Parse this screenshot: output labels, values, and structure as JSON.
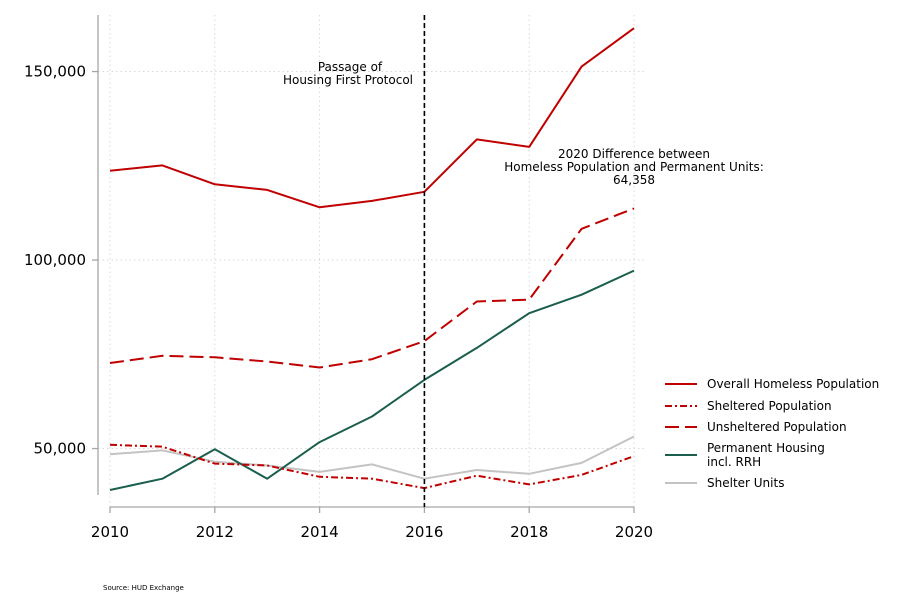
{
  "chart_data": {
    "type": "line",
    "title": "",
    "xlabel": "",
    "ylabel": "",
    "x": [
      2010,
      2011,
      2012,
      2013,
      2014,
      2015,
      2016,
      2017,
      2018,
      2019,
      2020
    ],
    "xlim": [
      2010,
      2020
    ],
    "ylim": [
      35000,
      165000
    ],
    "x_ticks": [
      2010,
      2012,
      2014,
      2016,
      2018,
      2020
    ],
    "x_tick_labels": [
      "2010",
      "2012",
      "2014",
      "2016",
      "2018",
      "2020"
    ],
    "y_ticks": [
      50000,
      100000,
      150000
    ],
    "y_tick_labels": [
      "50,000",
      "100,000",
      "150,000"
    ],
    "grid": true,
    "legend_position": "right",
    "series": [
      {
        "name": "Overall Homeless Population",
        "color": "#c00000",
        "style": "solid",
        "values": [
          123700,
          125100,
          120100,
          118600,
          114000,
          115700,
          118100,
          132000,
          130000,
          151300,
          161500
        ]
      },
      {
        "name": "Sheltered Population",
        "color": "#c00000",
        "style": "dashdot",
        "values": [
          51000,
          50500,
          46000,
          45500,
          42500,
          42000,
          39500,
          42800,
          40500,
          43000,
          48000
        ]
      },
      {
        "name": "Unsheltered Population",
        "color": "#c00000",
        "style": "longdash",
        "values": [
          72700,
          74600,
          74200,
          73100,
          71500,
          73700,
          78500,
          89000,
          89500,
          108300,
          113700
        ]
      },
      {
        "name_lines": [
          "Permanent Housing",
          "incl. RRH"
        ],
        "color": "#1a5e4e",
        "style": "solid",
        "values": [
          39000,
          42000,
          49800,
          42000,
          51700,
          58500,
          68200,
          76700,
          85900,
          90800,
          97200
        ]
      },
      {
        "name": "Shelter Units",
        "color": "#c3c3c3",
        "style": "solid",
        "values": [
          48500,
          49500,
          46500,
          45500,
          43800,
          45800,
          42000,
          44300,
          43300,
          46200,
          53200
        ]
      }
    ],
    "vline": {
      "x": 2016
    },
    "annotations": [
      {
        "lines": [
          "Passage of",
          "Housing First Protocol"
        ]
      },
      {
        "lines": [
          "2020 Difference between",
          "Homeless Population and Permanent Units:",
          "64,358"
        ]
      }
    ],
    "source": "Source: HUD Exchange"
  }
}
